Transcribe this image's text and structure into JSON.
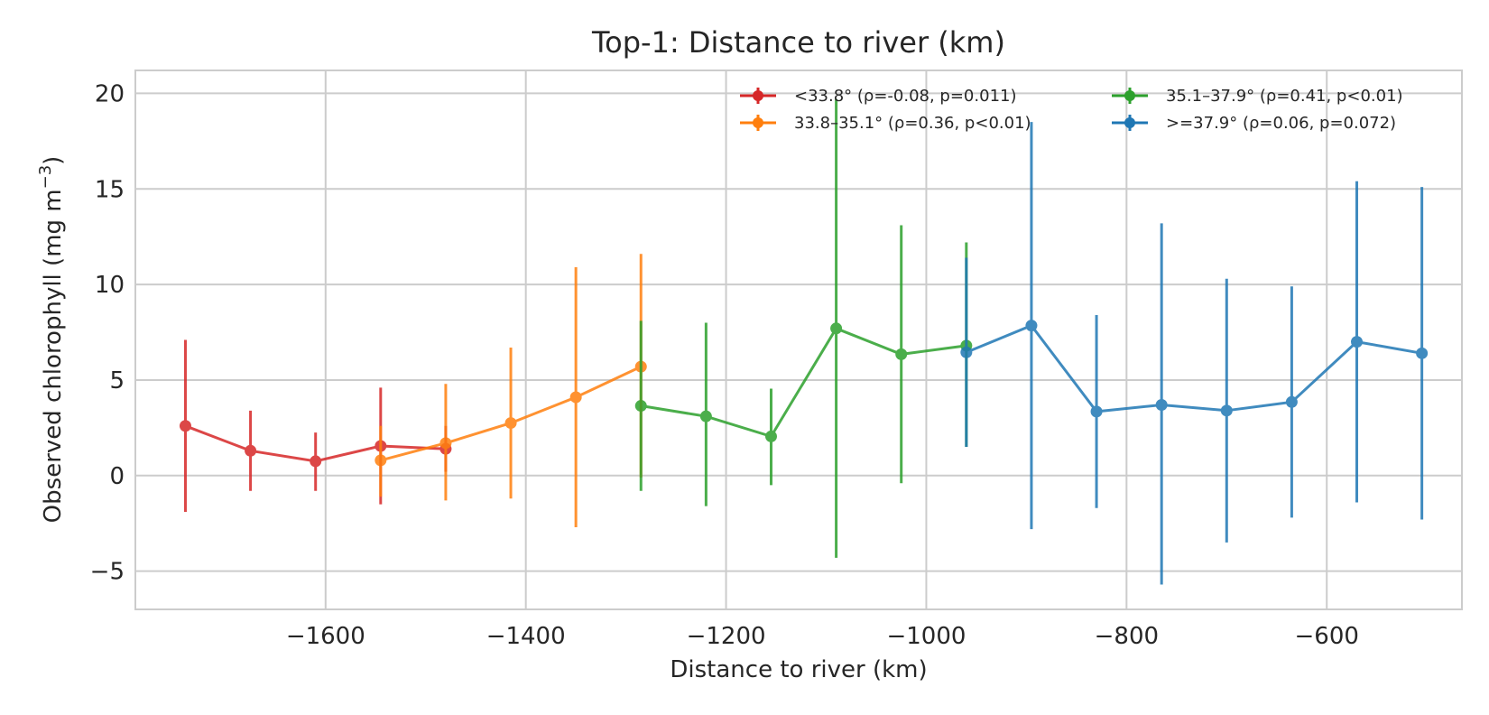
{
  "chart_data": {
    "type": "line",
    "title": "Top-1: Distance to river (km)",
    "xlabel": "Distance to river (km)",
    "ylabel_main": "Observed chlorophyll (mg m",
    "ylabel_sup": "−3",
    "ylabel_end": ")",
    "xlim": [
      -1790,
      -465
    ],
    "ylim": [
      -7,
      21.2
    ],
    "xticks": [
      -1600,
      -1400,
      -1200,
      -1000,
      -800,
      -600
    ],
    "xtick_labels": [
      "−1600",
      "−1400",
      "−1200",
      "−1000",
      "−800",
      "−600"
    ],
    "yticks": [
      -5,
      0,
      5,
      10,
      15,
      20
    ],
    "ytick_labels": [
      "−5",
      "0",
      "5",
      "10",
      "15",
      "20"
    ],
    "grid": true,
    "legend_placement": "top-right",
    "series": [
      {
        "name": "<33.8° (ρ=-0.08, p=0.011)",
        "color": "#d62728",
        "points": [
          {
            "x": -1740,
            "y": 2.6,
            "lo": -1.9,
            "hi": 7.1
          },
          {
            "x": -1675,
            "y": 1.3,
            "lo": -0.8,
            "hi": 3.4
          },
          {
            "x": -1610,
            "y": 0.75,
            "lo": -0.8,
            "hi": 2.25
          },
          {
            "x": -1545,
            "y": 1.55,
            "lo": -1.5,
            "hi": 4.6
          },
          {
            "x": -1480,
            "y": 1.4,
            "lo": 0.2,
            "hi": 2.6
          }
        ]
      },
      {
        "name": "33.8–35.1° (ρ=0.36, p<0.01)",
        "color": "#ff7f0e",
        "points": [
          {
            "x": -1545,
            "y": 0.8,
            "lo": -1.1,
            "hi": 2.6
          },
          {
            "x": -1480,
            "y": 1.7,
            "lo": -1.3,
            "hi": 4.8
          },
          {
            "x": -1415,
            "y": 2.75,
            "lo": -1.2,
            "hi": 6.7
          },
          {
            "x": -1350,
            "y": 4.1,
            "lo": -2.7,
            "hi": 10.9
          },
          {
            "x": -1285,
            "y": 5.7,
            "lo": -0.1,
            "hi": 11.6
          }
        ]
      },
      {
        "name": "35.1–37.9° (ρ=0.41, p<0.01)",
        "color": "#2ca02c",
        "points": [
          {
            "x": -1285,
            "y": 3.65,
            "lo": -0.8,
            "hi": 8.1
          },
          {
            "x": -1220,
            "y": 3.1,
            "lo": -1.6,
            "hi": 8.0
          },
          {
            "x": -1155,
            "y": 2.05,
            "lo": -0.5,
            "hi": 4.55
          },
          {
            "x": -1090,
            "y": 7.7,
            "lo": -4.3,
            "hi": 19.7
          },
          {
            "x": -1025,
            "y": 6.35,
            "lo": -0.4,
            "hi": 13.1
          },
          {
            "x": -960,
            "y": 6.8,
            "lo": 1.5,
            "hi": 12.2
          }
        ]
      },
      {
        "name": ">=37.9° (ρ=0.06, p=0.072)",
        "color": "#1f77b4",
        "points": [
          {
            "x": -960,
            "y": 6.45,
            "lo": 1.5,
            "hi": 11.4
          },
          {
            "x": -895,
            "y": 7.85,
            "lo": -2.8,
            "hi": 18.5
          },
          {
            "x": -830,
            "y": 3.35,
            "lo": -1.7,
            "hi": 8.4
          },
          {
            "x": -765,
            "y": 3.7,
            "lo": -5.7,
            "hi": 13.2
          },
          {
            "x": -700,
            "y": 3.4,
            "lo": -3.5,
            "hi": 10.3
          },
          {
            "x": -635,
            "y": 3.85,
            "lo": -2.2,
            "hi": 9.9
          },
          {
            "x": -570,
            "y": 7.0,
            "lo": -1.4,
            "hi": 15.4
          },
          {
            "x": -505,
            "y": 6.4,
            "lo": -2.3,
            "hi": 15.1
          }
        ]
      }
    ]
  }
}
